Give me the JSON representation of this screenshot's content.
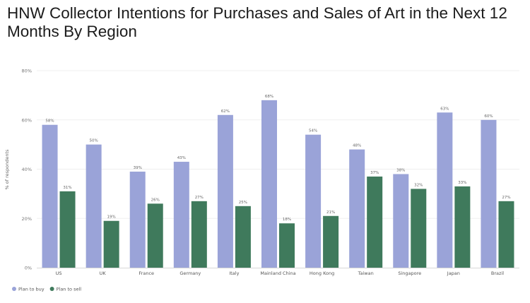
{
  "title": "HNW Collector Intentions for Purchases and Sales of Art in the Next 12 Months By Region",
  "chart_data": {
    "type": "bar",
    "title": "HNW Collector Intentions for Purchases and Sales of Art in the Next 12 Months By Region",
    "ylabel": "% of respondents",
    "xlabel": "",
    "ylim": [
      0,
      80
    ],
    "yticks": [
      0,
      20,
      40,
      60,
      80
    ],
    "ytick_labels": [
      "0%",
      "20%",
      "40%",
      "60%",
      "80%"
    ],
    "grid": true,
    "legend_position": "bottom-left",
    "categories": [
      "US",
      "UK",
      "France",
      "Germany",
      "Italy",
      "Mainland China",
      "Hong Kong",
      "Taiwan",
      "Singapore",
      "Japan",
      "Brazil"
    ],
    "series": [
      {
        "name": "Plan to buy",
        "color": "#9aa3d8",
        "values": [
          58,
          50,
          39,
          43,
          62,
          68,
          54,
          48,
          38,
          63,
          60
        ],
        "labels": [
          "58%",
          "50%",
          "39%",
          "43%",
          "62%",
          "68%",
          "54%",
          "48%",
          "38%",
          "63%",
          "60%"
        ]
      },
      {
        "name": "Plan to sell",
        "color": "#3f7a5c",
        "values": [
          31,
          19,
          26,
          27,
          25,
          18,
          21,
          37,
          32,
          33,
          27
        ],
        "labels": [
          "31%",
          "19%",
          "26%",
          "27%",
          "25%",
          "18%",
          "21%",
          "37%",
          "32%",
          "33%",
          "27%"
        ]
      }
    ]
  }
}
